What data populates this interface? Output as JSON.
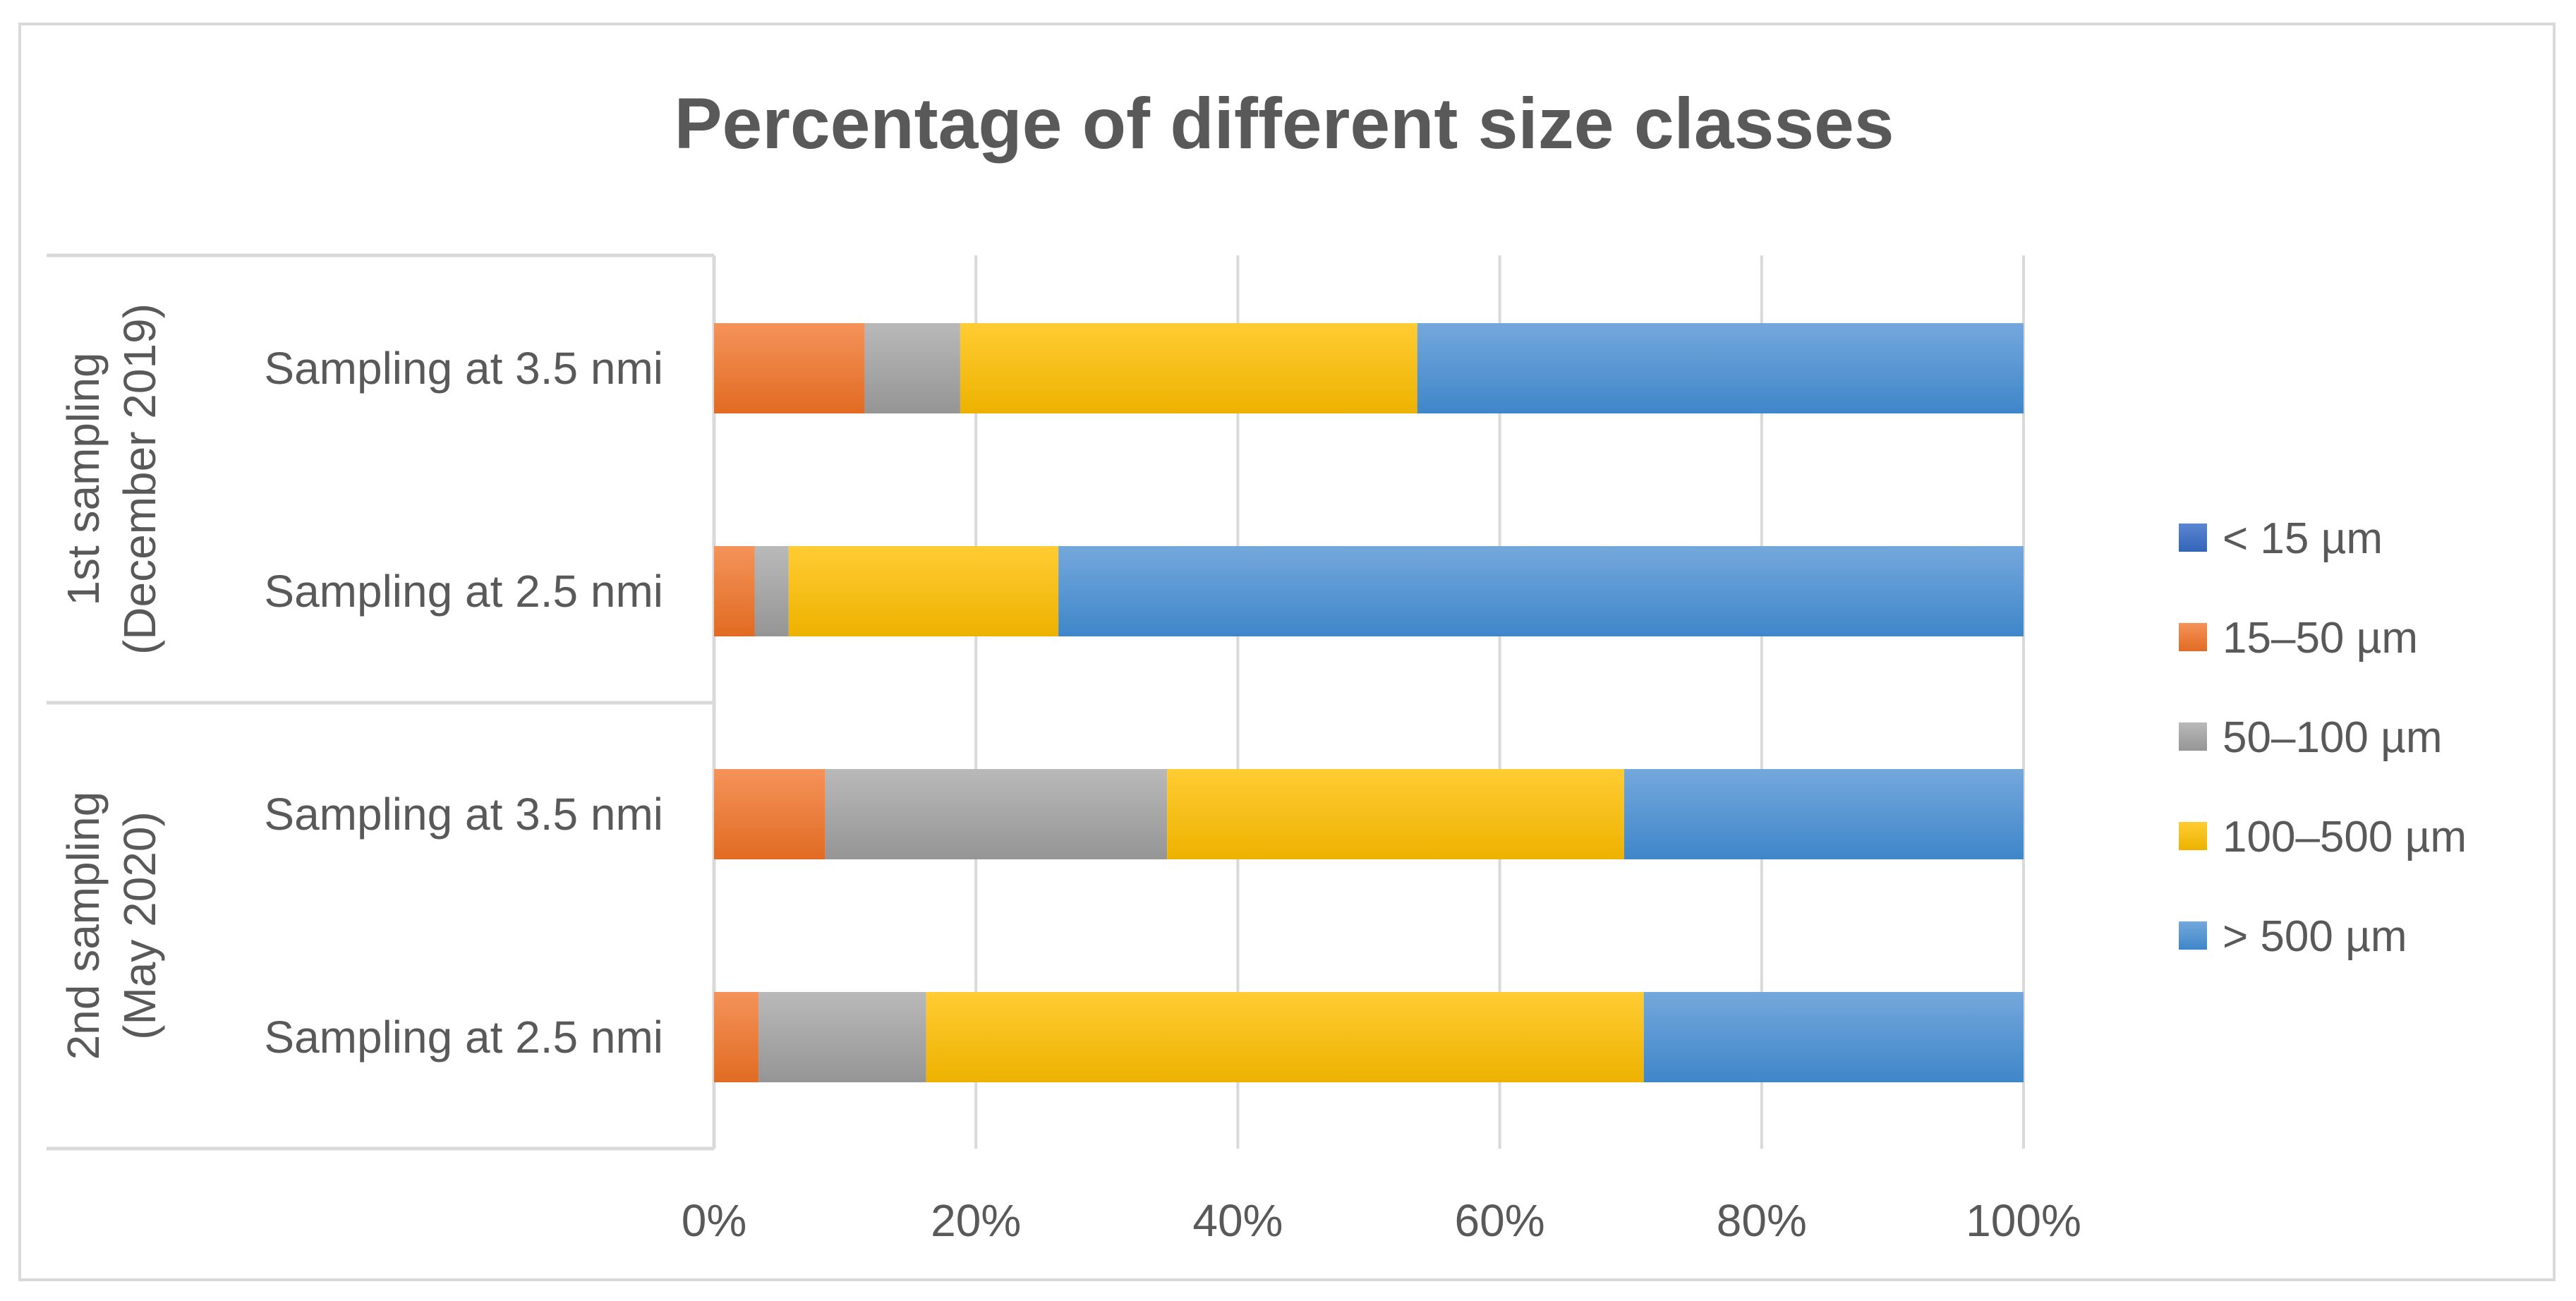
{
  "chart_data": {
    "type": "bar",
    "orientation": "horizontal",
    "stacked": "percent",
    "title": "Percentage of different size classes",
    "xlabel": "",
    "ylabel": "",
    "xlim": [
      0,
      100
    ],
    "x_ticks": [
      "0%",
      "20%",
      "40%",
      "60%",
      "80%",
      "100%"
    ],
    "grid": true,
    "legend_position": "right",
    "groups": [
      {
        "label": "1st sampling (December 2019)",
        "lines": [
          "1st sampling",
          "(December 2019)"
        ],
        "categories": [
          "Sampling at 3.5 nmi",
          "Sampling at 2.5 nmi"
        ]
      },
      {
        "label": "2nd sampling (May 2020)",
        "lines": [
          "2nd sampling",
          "(May 2020)"
        ],
        "categories": [
          "Sampling at 3.5 nmi",
          "Sampling at 2.5 nmi"
        ]
      }
    ],
    "categories": [
      "Sampling at 3.5 nmi",
      "Sampling at 2.5 nmi",
      "Sampling at 3.5 nmi",
      "Sampling at 2.5 nmi"
    ],
    "series": [
      {
        "name": "< 15 µm",
        "color": "#4472C4",
        "values": [
          0,
          0,
          0,
          0
        ]
      },
      {
        "name": "15–50 µm",
        "color": "#ED7D31",
        "values": [
          11.5,
          3.1,
          8.5,
          3.4
        ]
      },
      {
        "name": "50–100 µm",
        "color": "#A5A5A5",
        "values": [
          7.3,
          2.6,
          26.1,
          12.8
        ]
      },
      {
        "name": "100–500 µm",
        "color": "#FFC000",
        "values": [
          34.9,
          20.6,
          34.9,
          54.8
        ]
      },
      {
        "name": "> 500 µm",
        "color": "#5B9BD5",
        "values": [
          46.3,
          73.7,
          30.5,
          29.0
        ]
      }
    ]
  }
}
